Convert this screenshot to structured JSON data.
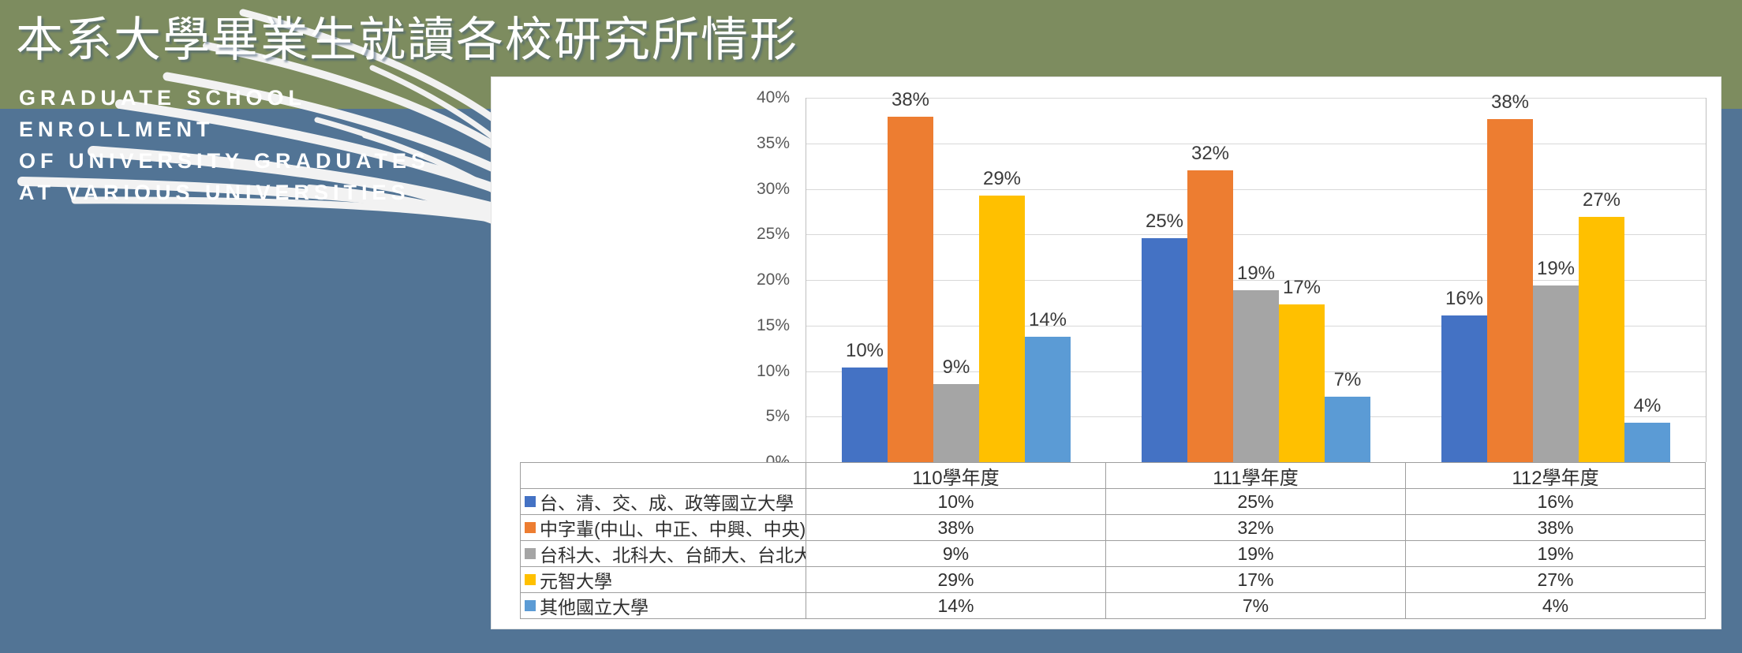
{
  "slide": {
    "title": "本系大學畢業生就讀各校研究所情形",
    "subtitle_lines": [
      "GRADUATE SCHOOL",
      "ENROLLMENT",
      "OF UNIVERSITY GRADUATES",
      "AT VARIOUS UNIVERSITIES"
    ]
  },
  "colors": {
    "sky_background": "#527495",
    "ground_background": "#7D8C5F",
    "panel_background": "#ffffff",
    "grass_decoration": "#f2f2f2",
    "gridline": "#D8D8D8",
    "table_border": "#9E9E9E",
    "axis_text": "#595959",
    "value_text": "#3A3A3A"
  },
  "chart_data": {
    "type": "bar",
    "categories": [
      "110學年度",
      "111學年度",
      "112學年度"
    ],
    "series": [
      {
        "name": "台、清、交、成、政等國立大學",
        "color": "#4472C4",
        "values": [
          10,
          25,
          16
        ],
        "labels": [
          "10%",
          "25%",
          "16%"
        ]
      },
      {
        "name": "中字輩(中山、中正、中興、中央)",
        "color": "#ED7D31",
        "values": [
          38,
          32,
          38
        ],
        "labels": [
          "38%",
          "32%",
          "38%"
        ]
      },
      {
        "name": "台科大、北科大、台師大、台北大學",
        "color": "#A5A5A5",
        "values": [
          9,
          19,
          19
        ],
        "labels": [
          "9%",
          "19%",
          "19%"
        ]
      },
      {
        "name": "元智大學",
        "color": "#FFC000",
        "values": [
          29,
          17,
          27
        ],
        "labels": [
          "29%",
          "17%",
          "27%"
        ]
      },
      {
        "name": "其他國立大學",
        "color": "#5B9BD5",
        "values": [
          14,
          7,
          4
        ],
        "labels": [
          "14%",
          "7%",
          "4%"
        ]
      }
    ],
    "bar_heights_pct": [
      [
        10.4,
        24.6,
        16.1
      ],
      [
        37.9,
        32.0,
        37.7
      ],
      [
        8.6,
        18.9,
        19.4
      ],
      [
        29.3,
        17.3,
        26.9
      ],
      [
        13.8,
        7.2,
        4.3
      ]
    ],
    "yticks": [
      "0%",
      "5%",
      "10%",
      "15%",
      "20%",
      "25%",
      "30%",
      "35%",
      "40%"
    ],
    "ylim": [
      0,
      40
    ],
    "grid": true,
    "legend_position": "data-table",
    "xlabel": "",
    "ylabel": ""
  }
}
